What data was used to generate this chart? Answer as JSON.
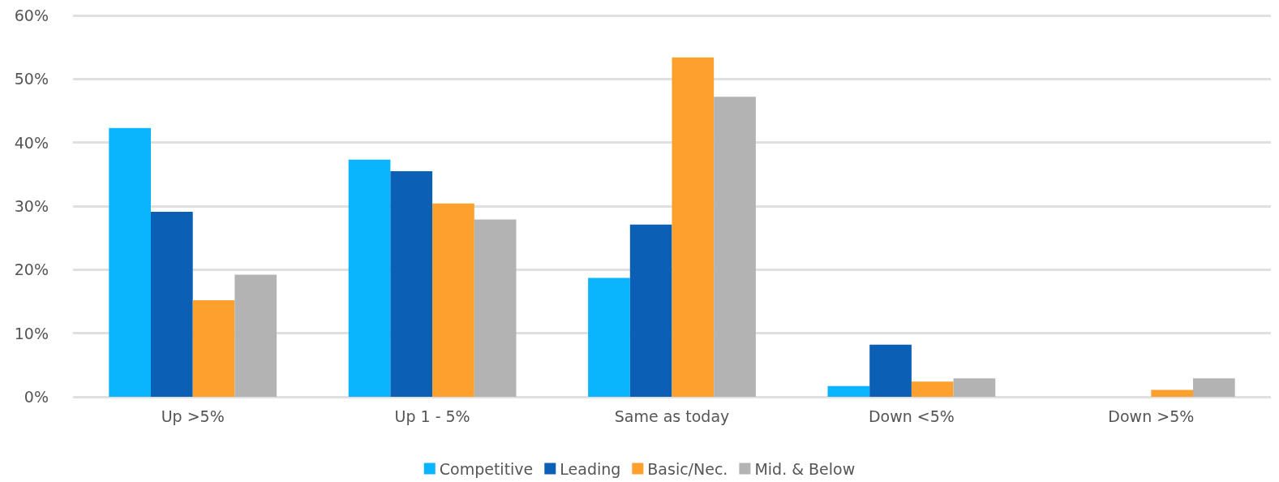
{
  "chart_data": {
    "type": "bar",
    "categories": [
      "Up >5%",
      "Up 1 - 5%",
      "Same as today",
      "Down <5%",
      "Down >5%"
    ],
    "series": [
      {
        "name": "Competitive",
        "color": "#0bb5fd",
        "values": [
          42.3,
          37.3,
          18.7,
          1.7,
          0
        ]
      },
      {
        "name": "Leading",
        "color": "#0b5fb4",
        "values": [
          29.1,
          35.5,
          27.1,
          8.2,
          0
        ]
      },
      {
        "name": "Basic/Nec.",
        "color": "#fda02d",
        "values": [
          15.2,
          30.4,
          53.4,
          2.4,
          1.1
        ]
      },
      {
        "name": "Mid. & Below",
        "color": "#b3b3b3",
        "values": [
          19.2,
          27.9,
          47.2,
          2.9,
          2.9
        ]
      }
    ],
    "ylim": [
      0,
      60
    ],
    "yticks": [
      {
        "value": 0,
        "label": "0%"
      },
      {
        "value": 10,
        "label": "10%"
      },
      {
        "value": 20,
        "label": "20%"
      },
      {
        "value": 30,
        "label": "30%"
      },
      {
        "value": 40,
        "label": "40%"
      },
      {
        "value": 50,
        "label": "50%"
      },
      {
        "value": 60,
        "label": "60%"
      }
    ],
    "grid": "y",
    "legend": "bottom"
  }
}
